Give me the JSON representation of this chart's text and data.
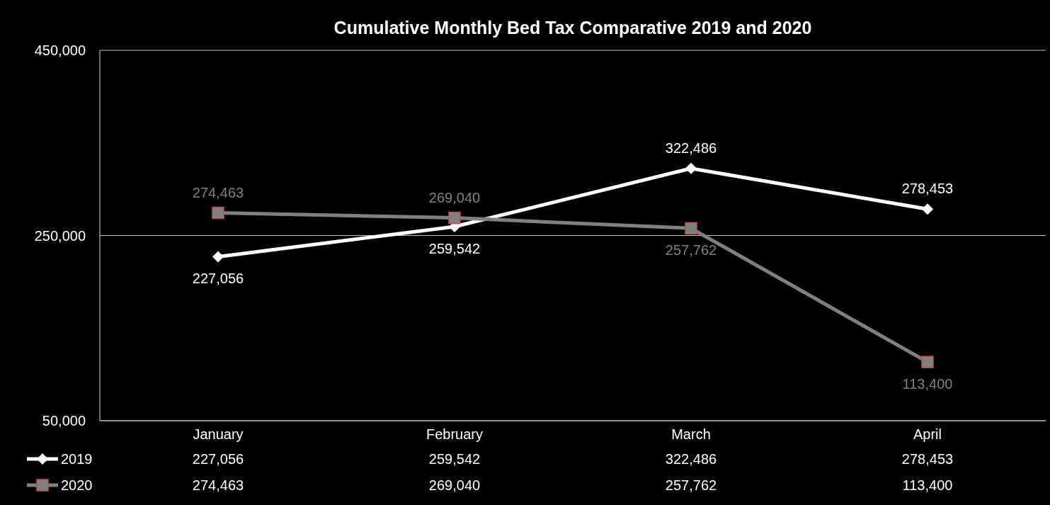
{
  "chart_data": {
    "type": "line",
    "title": "Cumulative Monthly Bed Tax Comparative 2019 and 2020",
    "categories": [
      "January",
      "February",
      "March",
      "April"
    ],
    "series": [
      {
        "name": "2019",
        "color": "#ffffff",
        "marker": "diamond",
        "values": [
          227056,
          259542,
          322486,
          278453
        ],
        "value_labels": [
          "227,056",
          "259,542",
          "322,486",
          "278,453"
        ]
      },
      {
        "name": "2020",
        "color": "#808080",
        "marker": "square",
        "values": [
          274463,
          269040,
          257762,
          113400
        ],
        "value_labels": [
          "274,463",
          "269,040",
          "257,762",
          "113,400"
        ]
      }
    ],
    "ylim": [
      50000,
      450000
    ],
    "yticks": [
      {
        "value": 50000,
        "label": "50,000"
      },
      {
        "value": 250000,
        "label": "250,000"
      },
      {
        "value": 450000,
        "label": "450,000"
      }
    ],
    "grid": "y",
    "legend": "bottom left"
  }
}
